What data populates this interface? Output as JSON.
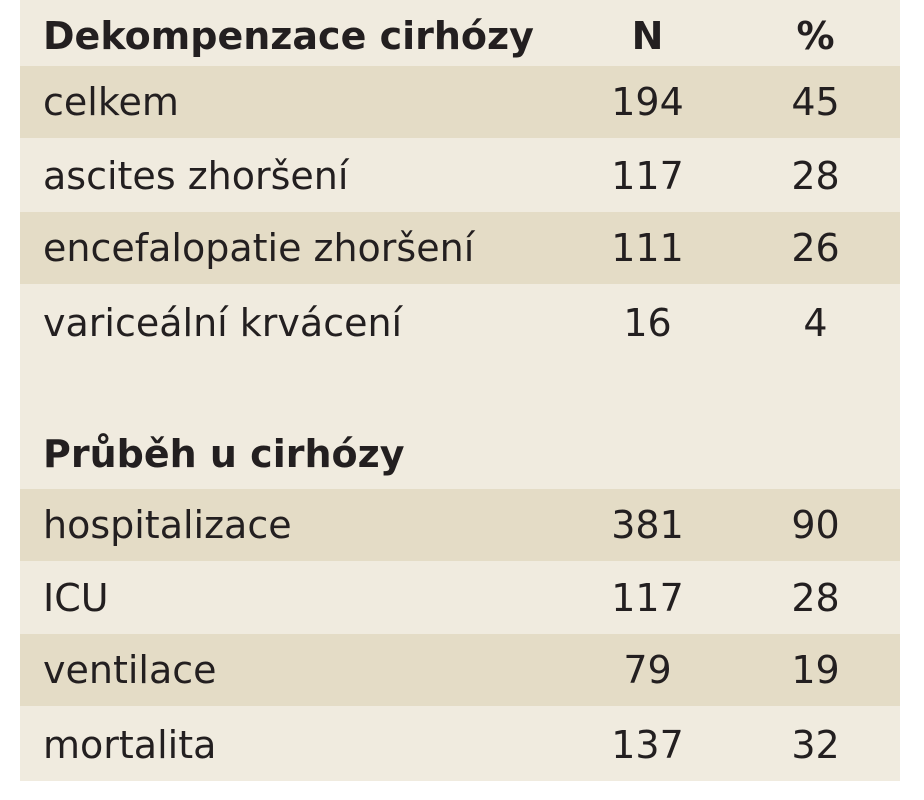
{
  "sections": [
    {
      "heading": "Dekompenzace cirhózy",
      "col_n": "N",
      "col_pct": "%",
      "rows": [
        {
          "label": "celkem",
          "n": "194",
          "pct": "45"
        },
        {
          "label": "ascites zhoršení",
          "n": "117",
          "pct": "28"
        },
        {
          "label": "encefalopatie zhoršení",
          "n": "111",
          "pct": "26"
        },
        {
          "label": "variceální krvácení",
          "n": "16",
          "pct": "4"
        }
      ]
    },
    {
      "heading": "Průběh u cirhózy",
      "rows": [
        {
          "label": "hospitalizace",
          "n": "381",
          "pct": "90"
        },
        {
          "label": "ICU",
          "n": "117",
          "pct": "28"
        },
        {
          "label": "ventilace",
          "n": "79",
          "pct": "19"
        },
        {
          "label": "mortalita",
          "n": "137",
          "pct": "32"
        }
      ]
    }
  ],
  "colors": {
    "table_background": "#f0ebdf",
    "row_shade": "#e4dcc6",
    "text": "#231f20"
  }
}
